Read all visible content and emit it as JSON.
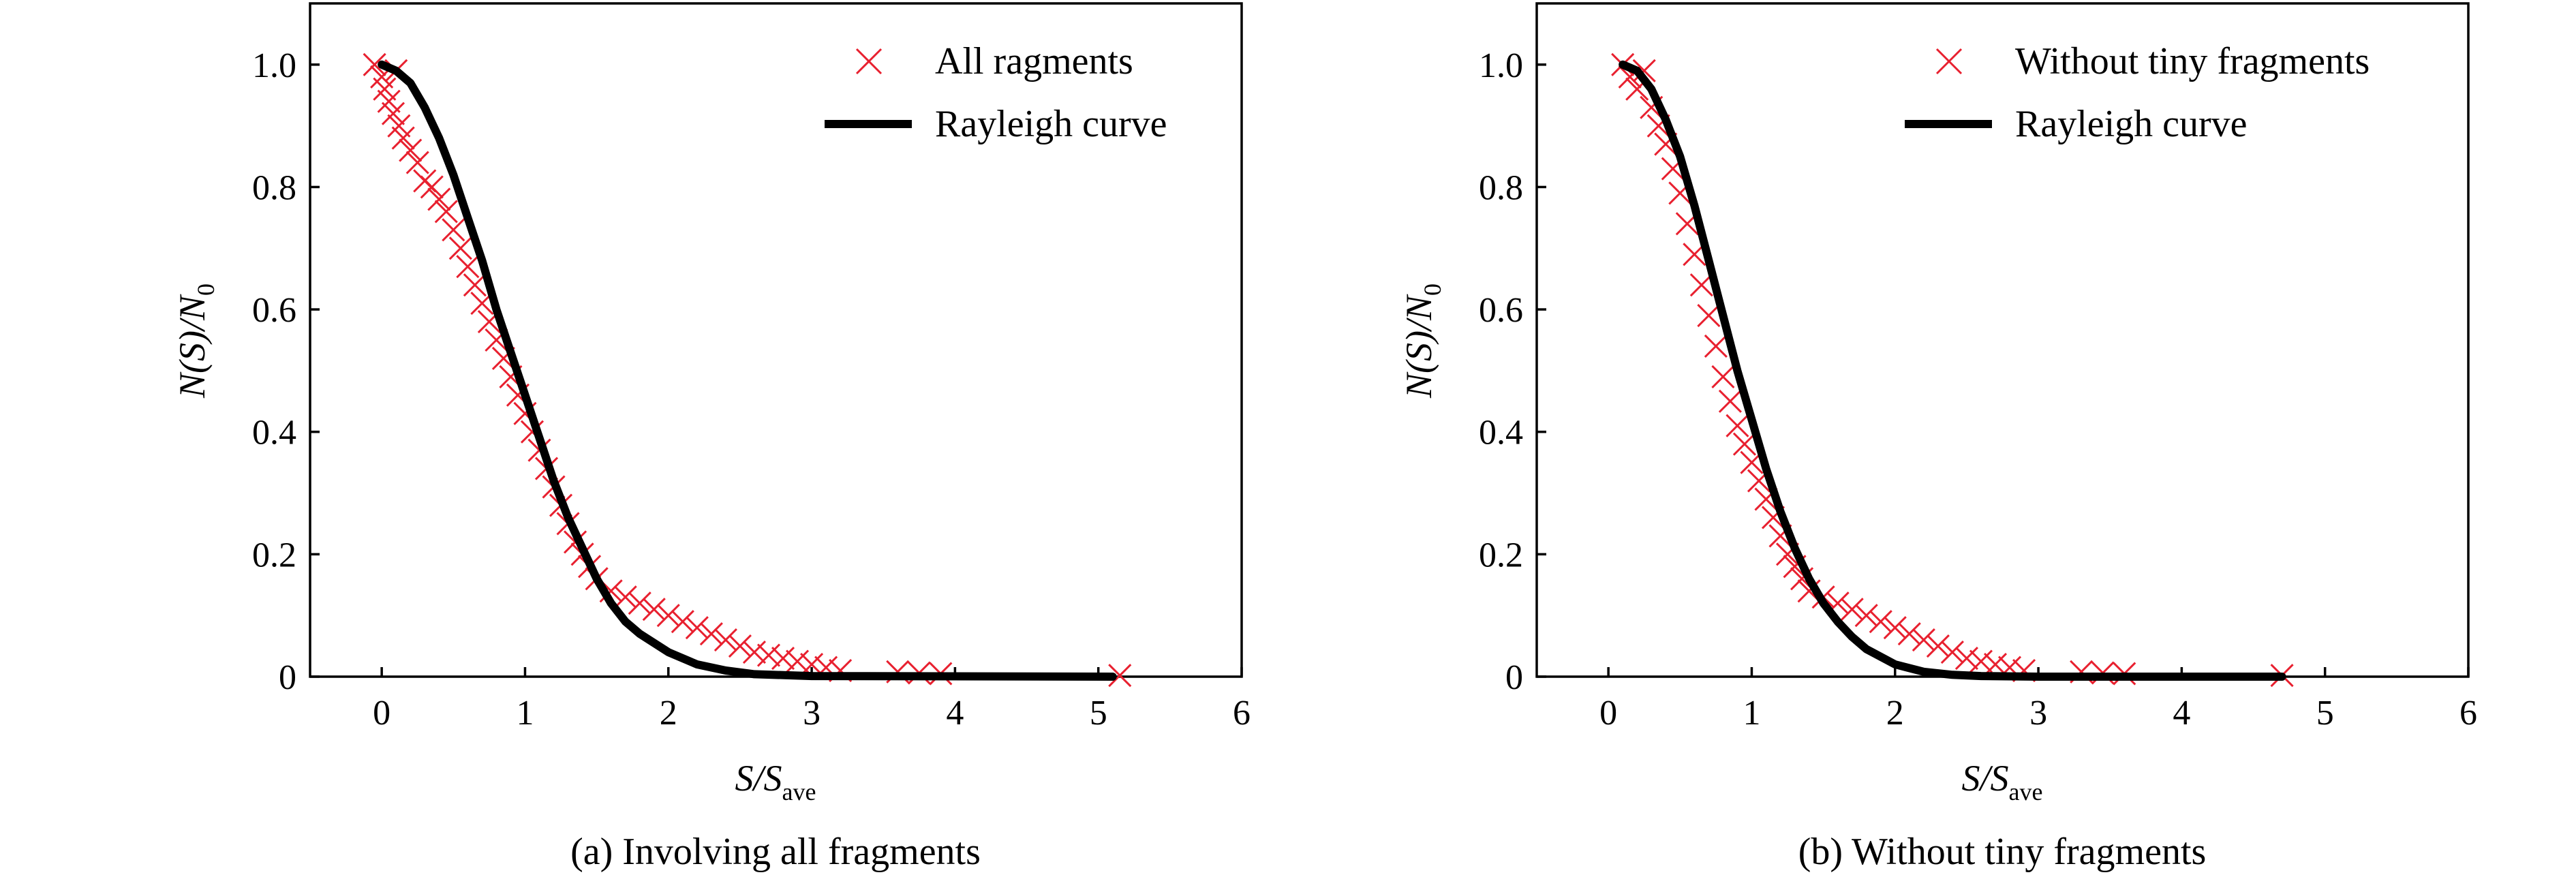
{
  "chart_data": [
    {
      "type": "scatter",
      "caption": "(a) Involving all fragments",
      "xlabel": {
        "main": "S/S",
        "sub": "ave"
      },
      "ylabel": {
        "main": "N(S)/N",
        "sub": "0"
      },
      "xlim": [
        -0.5,
        6
      ],
      "ylim": [
        0,
        1.1
      ],
      "xticks": [
        0,
        1,
        2,
        3,
        4,
        5,
        6
      ],
      "yticks": [
        0,
        0.2,
        0.4,
        0.6,
        0.8,
        1.0
      ],
      "ytick_labels": [
        "0",
        "0.2",
        "0.4",
        "0.6",
        "0.8",
        "1.0"
      ],
      "grid": false,
      "legend_position": "top-right",
      "series": [
        {
          "name": "All ragments",
          "kind": "scatter",
          "marker": "x",
          "color": "#e8202f",
          "points": [
            [
              -0.05,
              1.0
            ],
            [
              0.0,
              0.98
            ],
            [
              0.02,
              0.96
            ],
            [
              0.05,
              0.94
            ],
            [
              0.08,
              0.92
            ],
            [
              0.1,
              0.99
            ],
            [
              0.12,
              0.9
            ],
            [
              0.15,
              0.88
            ],
            [
              0.2,
              0.86
            ],
            [
              0.25,
              0.84
            ],
            [
              0.3,
              0.81
            ],
            [
              0.35,
              0.8
            ],
            [
              0.4,
              0.78
            ],
            [
              0.45,
              0.76
            ],
            [
              0.5,
              0.73
            ],
            [
              0.55,
              0.7
            ],
            [
              0.6,
              0.67
            ],
            [
              0.65,
              0.64
            ],
            [
              0.7,
              0.61
            ],
            [
              0.75,
              0.58
            ],
            [
              0.8,
              0.55
            ],
            [
              0.85,
              0.52
            ],
            [
              0.9,
              0.49
            ],
            [
              0.95,
              0.46
            ],
            [
              1.0,
              0.43
            ],
            [
              1.05,
              0.4
            ],
            [
              1.1,
              0.37
            ],
            [
              1.15,
              0.34
            ],
            [
              1.2,
              0.31
            ],
            [
              1.25,
              0.28
            ],
            [
              1.3,
              0.25
            ],
            [
              1.35,
              0.22
            ],
            [
              1.4,
              0.2
            ],
            [
              1.45,
              0.18
            ],
            [
              1.5,
              0.16
            ],
            [
              1.6,
              0.14
            ],
            [
              1.7,
              0.13
            ],
            [
              1.8,
              0.12
            ],
            [
              1.9,
              0.11
            ],
            [
              2.0,
              0.1
            ],
            [
              2.1,
              0.09
            ],
            [
              2.2,
              0.08
            ],
            [
              2.3,
              0.07
            ],
            [
              2.4,
              0.06
            ],
            [
              2.5,
              0.05
            ],
            [
              2.6,
              0.04
            ],
            [
              2.7,
              0.035
            ],
            [
              2.8,
              0.03
            ],
            [
              2.9,
              0.025
            ],
            [
              3.0,
              0.02
            ],
            [
              3.1,
              0.015
            ],
            [
              3.2,
              0.01
            ],
            [
              3.6,
              0.008
            ],
            [
              3.75,
              0.006
            ],
            [
              3.9,
              0.005
            ],
            [
              5.15,
              0.002
            ]
          ]
        },
        {
          "name": "Rayleigh curve",
          "kind": "line",
          "color": "#000000",
          "points": [
            [
              0.0,
              1.0
            ],
            [
              0.1,
              0.99
            ],
            [
              0.2,
              0.97
            ],
            [
              0.3,
              0.93
            ],
            [
              0.4,
              0.88
            ],
            [
              0.5,
              0.82
            ],
            [
              0.6,
              0.75
            ],
            [
              0.7,
              0.68
            ],
            [
              0.8,
              0.6
            ],
            [
              0.9,
              0.53
            ],
            [
              1.0,
              0.46
            ],
            [
              1.1,
              0.39
            ],
            [
              1.2,
              0.32
            ],
            [
              1.3,
              0.26
            ],
            [
              1.4,
              0.21
            ],
            [
              1.5,
              0.16
            ],
            [
              1.6,
              0.12
            ],
            [
              1.7,
              0.09
            ],
            [
              1.8,
              0.07
            ],
            [
              2.0,
              0.04
            ],
            [
              2.2,
              0.02
            ],
            [
              2.4,
              0.01
            ],
            [
              2.6,
              0.004
            ],
            [
              3.0,
              0.001
            ],
            [
              5.1,
              0.0
            ]
          ]
        }
      ]
    },
    {
      "type": "scatter",
      "caption": "(b) Without tiny fragments",
      "xlabel": {
        "main": "S/S",
        "sub": "ave"
      },
      "ylabel": {
        "main": "N(S)/N",
        "sub": "0"
      },
      "xlim": [
        -0.5,
        6
      ],
      "ylim": [
        0,
        1.1
      ],
      "xticks": [
        0,
        1,
        2,
        3,
        4,
        5,
        6
      ],
      "yticks": [
        0,
        0.2,
        0.4,
        0.6,
        0.8,
        1.0
      ],
      "ytick_labels": [
        "0",
        "0.2",
        "0.4",
        "0.6",
        "0.8",
        "1.0"
      ],
      "grid": false,
      "legend_position": "top-right",
      "series": [
        {
          "name": "Without tiny fragments",
          "kind": "scatter",
          "marker": "x",
          "color": "#e8202f",
          "points": [
            [
              0.1,
              1.0
            ],
            [
              0.15,
              0.98
            ],
            [
              0.2,
              0.96
            ],
            [
              0.25,
              0.99
            ],
            [
              0.3,
              0.93
            ],
            [
              0.35,
              0.9
            ],
            [
              0.4,
              0.87
            ],
            [
              0.45,
              0.83
            ],
            [
              0.5,
              0.79
            ],
            [
              0.55,
              0.74
            ],
            [
              0.6,
              0.69
            ],
            [
              0.65,
              0.64
            ],
            [
              0.7,
              0.59
            ],
            [
              0.75,
              0.54
            ],
            [
              0.8,
              0.49
            ],
            [
              0.85,
              0.45
            ],
            [
              0.9,
              0.41
            ],
            [
              0.95,
              0.38
            ],
            [
              1.0,
              0.35
            ],
            [
              1.05,
              0.32
            ],
            [
              1.1,
              0.29
            ],
            [
              1.15,
              0.26
            ],
            [
              1.2,
              0.23
            ],
            [
              1.25,
              0.2
            ],
            [
              1.3,
              0.18
            ],
            [
              1.35,
              0.16
            ],
            [
              1.4,
              0.14
            ],
            [
              1.5,
              0.13
            ],
            [
              1.6,
              0.12
            ],
            [
              1.7,
              0.11
            ],
            [
              1.8,
              0.1
            ],
            [
              1.9,
              0.09
            ],
            [
              2.0,
              0.08
            ],
            [
              2.1,
              0.07
            ],
            [
              2.2,
              0.06
            ],
            [
              2.3,
              0.05
            ],
            [
              2.4,
              0.04
            ],
            [
              2.5,
              0.03
            ],
            [
              2.6,
              0.025
            ],
            [
              2.7,
              0.02
            ],
            [
              2.8,
              0.015
            ],
            [
              2.9,
              0.01
            ],
            [
              3.3,
              0.008
            ],
            [
              3.45,
              0.006
            ],
            [
              3.6,
              0.005
            ],
            [
              4.7,
              0.002
            ]
          ]
        },
        {
          "name": "Rayleigh curve",
          "kind": "line",
          "color": "#000000",
          "points": [
            [
              0.1,
              1.0
            ],
            [
              0.2,
              0.99
            ],
            [
              0.3,
              0.96
            ],
            [
              0.4,
              0.91
            ],
            [
              0.5,
              0.85
            ],
            [
              0.6,
              0.77
            ],
            [
              0.7,
              0.68
            ],
            [
              0.8,
              0.59
            ],
            [
              0.9,
              0.5
            ],
            [
              1.0,
              0.42
            ],
            [
              1.1,
              0.34
            ],
            [
              1.2,
              0.27
            ],
            [
              1.3,
              0.21
            ],
            [
              1.4,
              0.16
            ],
            [
              1.5,
              0.12
            ],
            [
              1.6,
              0.09
            ],
            [
              1.7,
              0.065
            ],
            [
              1.8,
              0.045
            ],
            [
              2.0,
              0.02
            ],
            [
              2.2,
              0.008
            ],
            [
              2.4,
              0.003
            ],
            [
              2.6,
              0.001
            ],
            [
              3.0,
              0.0
            ],
            [
              4.7,
              0.0
            ]
          ]
        }
      ]
    }
  ]
}
